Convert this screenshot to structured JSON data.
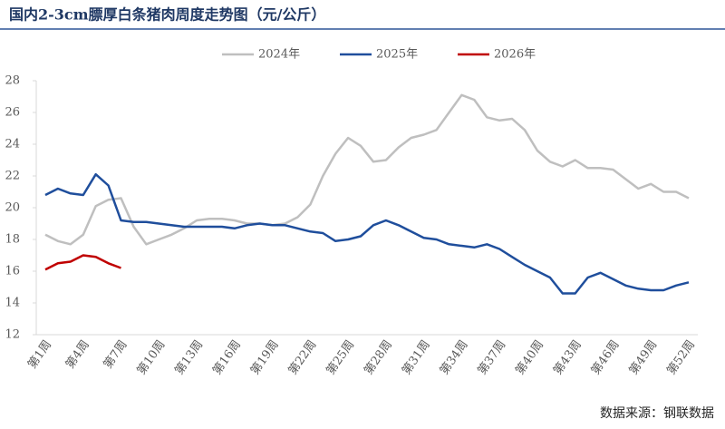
{
  "chart_data": {
    "type": "line",
    "title": "国内2-3cm膘厚白条猪肉周度走势图（元/公斤）",
    "source": "数据来源：钢联数据",
    "categories": [
      "第1周",
      null,
      null,
      "第4周",
      null,
      null,
      "第7周",
      null,
      null,
      "第10周",
      null,
      null,
      "第13周",
      null,
      null,
      "第16周",
      null,
      null,
      "第19周",
      null,
      null,
      "第22周",
      null,
      null,
      "第25周",
      null,
      null,
      "第28周",
      null,
      null,
      "第31周",
      null,
      null,
      "第34周",
      null,
      null,
      "第37周",
      null,
      null,
      "第40周",
      null,
      null,
      "第43周",
      null,
      null,
      "第46周",
      null,
      null,
      "第49周",
      null,
      null,
      "第52周"
    ],
    "series": [
      {
        "name": "2024年",
        "color": "#bfbfbf",
        "values": [
          18.3,
          17.9,
          17.7,
          18.3,
          20.1,
          20.5,
          20.6,
          18.8,
          17.7,
          18.0,
          18.3,
          18.7,
          19.2,
          19.3,
          19.3,
          19.2,
          19.0,
          19.0,
          18.9,
          19.0,
          19.4,
          20.2,
          22.0,
          23.4,
          24.4,
          23.9,
          22.9,
          23.0,
          23.8,
          24.4,
          24.6,
          24.9,
          26.0,
          27.1,
          26.8,
          25.7,
          25.5,
          25.6,
          24.9,
          23.6,
          22.9,
          22.6,
          23.0,
          22.5,
          22.5,
          22.4,
          21.8,
          21.2,
          21.5,
          21.0,
          21.0,
          20.6
        ]
      },
      {
        "name": "2025年",
        "color": "#1f4e9c",
        "values": [
          20.8,
          21.2,
          20.9,
          20.8,
          22.1,
          21.4,
          19.2,
          19.1,
          19.1,
          19.0,
          18.9,
          18.8,
          18.8,
          18.8,
          18.8,
          18.7,
          18.9,
          19.0,
          18.9,
          18.9,
          18.7,
          18.5,
          18.4,
          17.9,
          18.0,
          18.2,
          18.9,
          19.2,
          18.9,
          18.5,
          18.1,
          18.0,
          17.7,
          17.6,
          17.5,
          17.7,
          17.4,
          16.9,
          16.4,
          16.0,
          15.6,
          14.6,
          14.6,
          15.6,
          15.9,
          15.5,
          15.1,
          14.9,
          14.8,
          14.8,
          15.1,
          15.3
        ]
      },
      {
        "name": "2026年",
        "color": "#c00000",
        "values": [
          16.1,
          16.5,
          16.6,
          17.0,
          16.9,
          16.5,
          16.2,
          null,
          null,
          null,
          null,
          null,
          null,
          null,
          null,
          null,
          null,
          null,
          null,
          null,
          null,
          null,
          null,
          null,
          null,
          null,
          null,
          null,
          null,
          null,
          null,
          null,
          null,
          null,
          null,
          null,
          null,
          null,
          null,
          null,
          null,
          null,
          null,
          null,
          null,
          null,
          null,
          null,
          null,
          null,
          null,
          null
        ]
      }
    ],
    "ylim": [
      12,
      28
    ],
    "yticks": [
      12,
      14,
      16,
      18,
      20,
      22,
      24,
      26,
      28
    ],
    "legend": "top"
  }
}
